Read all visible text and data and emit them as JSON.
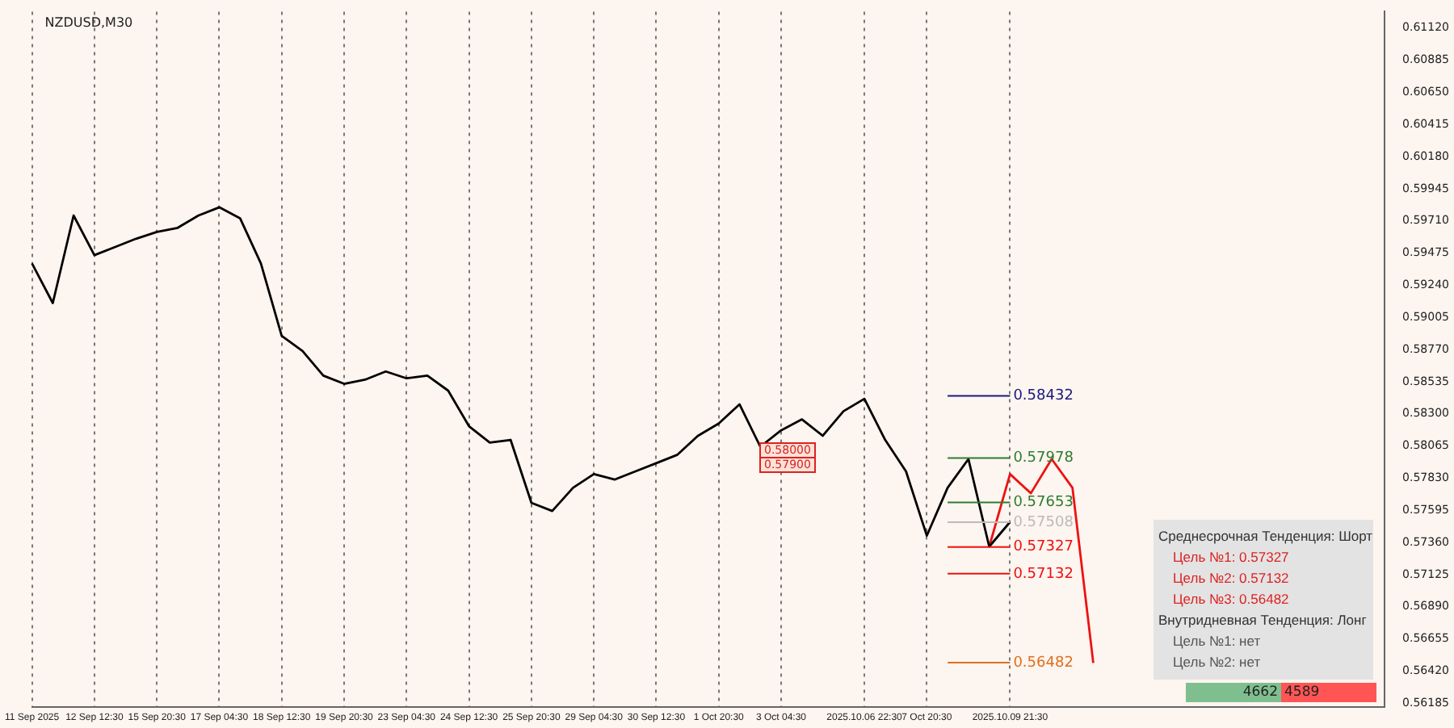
{
  "chart_data": {
    "type": "line",
    "title": "NZDUSD,M30",
    "categories": [
      "11 Sep 2025",
      null,
      null,
      "12 Sep 12:30",
      null,
      null,
      "15 Sep 20:30",
      null,
      null,
      "17 Sep 04:30",
      null,
      null,
      "18 Sep 12:30",
      null,
      null,
      "19 Sep 20:30",
      null,
      null,
      "23 Sep 04:30",
      null,
      null,
      "24 Sep 12:30",
      null,
      null,
      "25 Sep 20:30",
      null,
      null,
      "29 Sep 04:30",
      null,
      null,
      "30 Sep 12:30",
      null,
      null,
      "1 Oct 20:30",
      null,
      null,
      "3 Oct 04:30",
      null,
      null,
      null,
      "2025.10.06 22:30",
      null,
      null,
      "7 Oct 20:30",
      null,
      null,
      null,
      "2025.10.09 21:30",
      null,
      null,
      null,
      null,
      null,
      null,
      null,
      null,
      null,
      null,
      null,
      null,
      null,
      null,
      null,
      null,
      null,
      null
    ],
    "series": [
      {
        "color": "#000000",
        "values": [
          0.594,
          0.5911,
          0.5975,
          0.5946,
          0.5952,
          0.5958,
          0.5963,
          0.5966,
          0.5975,
          0.5981,
          0.5973,
          0.594,
          0.5887,
          0.5876,
          0.5858,
          0.5852,
          0.5855,
          0.5861,
          0.5856,
          0.5858,
          0.5847,
          0.5821,
          0.5809,
          0.5811,
          0.5765,
          0.5759,
          0.5776,
          0.5786,
          0.5782,
          0.5788,
          0.5794,
          0.58,
          0.5814,
          0.5823,
          0.5837,
          0.5806,
          0.5818,
          0.5826,
          0.5814,
          0.5832,
          0.5841,
          0.5811,
          0.5788,
          0.5741,
          0.5776,
          0.5797,
          0.5733,
          0.5751,
          null,
          null,
          null,
          null,
          null,
          null,
          null,
          null,
          null,
          null,
          null,
          null,
          null,
          null,
          null,
          null,
          null,
          null
        ]
      },
      {
        "color": "#ee1111",
        "values": [
          null,
          null,
          null,
          null,
          null,
          null,
          null,
          null,
          null,
          null,
          null,
          null,
          null,
          null,
          null,
          null,
          null,
          null,
          null,
          null,
          null,
          null,
          null,
          null,
          null,
          null,
          null,
          null,
          null,
          null,
          null,
          null,
          null,
          null,
          null,
          null,
          null,
          null,
          null,
          null,
          null,
          null,
          null,
          null,
          null,
          null,
          0.5733,
          0.5786,
          0.5772,
          0.5797,
          0.5776,
          0.5648,
          null,
          null,
          null,
          null,
          null,
          null,
          null,
          null,
          null,
          null,
          null,
          null,
          null,
          null
        ]
      }
    ],
    "ylim": [
      0.5616,
      0.6124
    ],
    "yticks": [
      0.56185,
      {
        "value": 0.5642,
        "label": "0.56420"
      },
      0.56655,
      {
        "value": 0.5689,
        "label": "0.56890"
      },
      0.57125,
      {
        "value": 0.5736,
        "label": "0.57360"
      },
      0.57595,
      {
        "value": 0.5783,
        "label": "0.57830"
      },
      0.58065,
      {
        "value": 0.583,
        "label": "0.58300"
      },
      0.58535,
      {
        "value": 0.5877,
        "label": "0.58770"
      },
      0.59005,
      {
        "value": 0.5924,
        "label": "0.59240"
      },
      0.59475,
      {
        "value": 0.5971,
        "label": "0.59710"
      },
      0.59945,
      {
        "value": 0.6018,
        "label": "0.60180"
      },
      0.60415,
      {
        "value": 0.6065,
        "label": "0.60650"
      },
      0.60885,
      {
        "value": 0.6112,
        "label": "0.61120"
      }
    ],
    "grid": "x",
    "legend": false,
    "marker": "none",
    "line_style": "solid",
    "ref_lines": [
      {
        "axis": "y",
        "value": 0.58432,
        "label": "0.58432",
        "color": "#1a1a80"
      },
      {
        "axis": "y",
        "value": 0.57978,
        "label": "0.57978",
        "color": "#2e7d32"
      },
      {
        "axis": "y",
        "value": 0.57653,
        "label": "0.57653",
        "color": "#2e7d32"
      },
      {
        "axis": "y",
        "value": 0.57327,
        "label": "0.57327",
        "color": "#ee1111"
      },
      {
        "axis": "y",
        "value": 0.57132,
        "label": "0.57132",
        "color": "#ee1111"
      },
      {
        "axis": "y",
        "value": 0.56482,
        "label": "0.56482",
        "color": "#e07020"
      },
      {
        "axis": "y",
        "value": 0.57508,
        "label": "0.57508",
        "color": "#bbbbbb"
      }
    ],
    "annotations": [
      "Среднесрочная Тенденция: Шорт",
      "Цель №1: 0.57327",
      "Цель №2: 0.57132",
      "Цель №3: 0.56482",
      "Внутридневная Тенденция: Лонг",
      "Цель №1: нет",
      "Цель №2: нет",
      "4662",
      "4589",
      "0.58000",
      "0.57900"
    ]
  }
}
